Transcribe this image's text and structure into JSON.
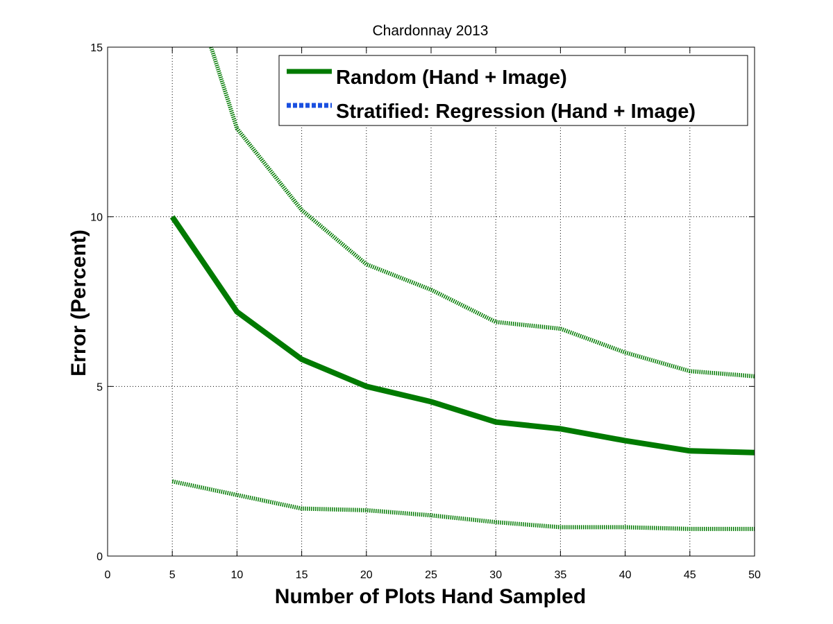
{
  "chart_data": {
    "type": "line",
    "title": "Chardonnay 2013",
    "xlabel": "Number of Plots Hand Sampled",
    "ylabel": "Error (Percent)",
    "xlim": [
      0,
      50
    ],
    "ylim": [
      0,
      15
    ],
    "xticks": [
      0,
      5,
      10,
      15,
      20,
      25,
      30,
      35,
      40,
      45,
      50
    ],
    "yticks": [
      0,
      5,
      10,
      15
    ],
    "grid": true,
    "legend_position": "top-right",
    "series": [
      {
        "name": "Random (Hand + Image)",
        "style": "solid",
        "color": "#007a00",
        "x": [
          5,
          10,
          15,
          20,
          25,
          30,
          35,
          40,
          45,
          50
        ],
        "y": [
          10.0,
          7.2,
          5.8,
          5.0,
          4.55,
          3.95,
          3.75,
          3.4,
          3.1,
          3.05
        ]
      },
      {
        "name": "Stratified: Regression (Hand + Image)",
        "style": "dotted",
        "color": "#1a4fe0",
        "x": [],
        "y": []
      },
      {
        "name": "",
        "style": "dotted",
        "color": "#007a00",
        "x": [
          8,
          10,
          15,
          20,
          25,
          30,
          35,
          40,
          45,
          50
        ],
        "y": [
          15.0,
          12.6,
          10.2,
          8.6,
          7.85,
          6.9,
          6.7,
          6.0,
          5.45,
          5.3
        ]
      },
      {
        "name": "",
        "style": "dotted",
        "color": "#007a00",
        "x": [
          5,
          10,
          15,
          20,
          25,
          30,
          35,
          40,
          45,
          50
        ],
        "y": [
          2.2,
          1.8,
          1.4,
          1.35,
          1.2,
          1.0,
          0.85,
          0.85,
          0.8,
          0.8
        ]
      }
    ]
  }
}
